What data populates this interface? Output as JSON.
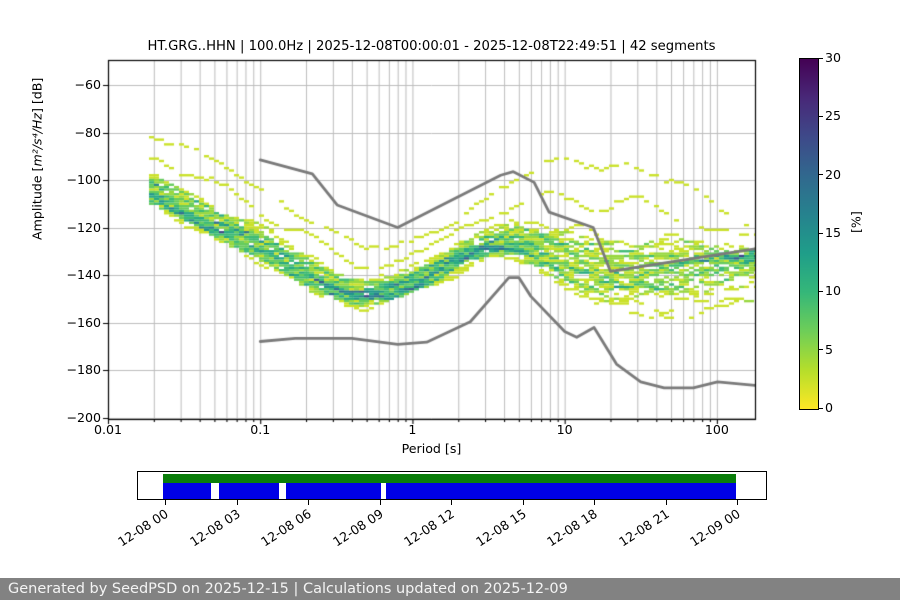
{
  "header": {
    "title": "HT.GRG..HHN | 100.0Hz | 2025-12-08T00:00:01 - 2025-12-08T22:49:51 | 42 segments"
  },
  "chart_data": {
    "type": "heatmap",
    "title": "HT.GRG..HHN | 100.0Hz | 2025-12-08T00:00:01 - 2025-12-08T22:49:51 | 42 segments",
    "xlabel": "Period [s]",
    "ylabel_prefix": "Amplitude [",
    "ylabel_math": "m²/s⁴/Hz",
    "ylabel_suffix": "] [dB]",
    "xscale": "log",
    "xlim": [
      0.01,
      178
    ],
    "ylim": [
      -200,
      -50
    ],
    "grid": true,
    "xtick_values": [
      0.01,
      0.1,
      1,
      10,
      100
    ],
    "xtick_labels": [
      "0.01",
      "0.1",
      "1",
      "10",
      "100"
    ],
    "ytick_values": [
      -60,
      -80,
      -100,
      -120,
      -140,
      -160,
      -180,
      -200
    ],
    "ytick_labels": [
      "−60",
      "−80",
      "−100",
      "−120",
      "−140",
      "−160",
      "−180",
      "−200"
    ],
    "segments": 42,
    "db_bin_width": 1,
    "ppsd_envelope": {
      "mode": [
        [
          0.02,
          -107
        ],
        [
          0.03,
          -114
        ],
        [
          0.05,
          -121
        ],
        [
          0.08,
          -127
        ],
        [
          0.12,
          -133
        ],
        [
          0.2,
          -141
        ],
        [
          0.3,
          -147
        ],
        [
          0.45,
          -150.5
        ],
        [
          0.7,
          -148.5
        ],
        [
          1,
          -144.5
        ],
        [
          1.5,
          -139
        ],
        [
          2.2,
          -133
        ],
        [
          3.2,
          -129
        ],
        [
          4.5,
          -128.5
        ],
        [
          6,
          -131
        ],
        [
          9,
          -136
        ],
        [
          15,
          -141
        ],
        [
          25,
          -143
        ],
        [
          50,
          -141
        ],
        [
          100,
          -137
        ],
        [
          178,
          -134
        ]
      ],
      "upper": [
        [
          0.02,
          -78
        ],
        [
          0.03,
          -84
        ],
        [
          0.05,
          -90
        ],
        [
          0.08,
          -97
        ],
        [
          0.12,
          -104
        ],
        [
          0.2,
          -112
        ],
        [
          0.3,
          -120
        ],
        [
          0.45,
          -127
        ],
        [
          0.7,
          -128
        ],
        [
          1,
          -124
        ],
        [
          1.5,
          -118
        ],
        [
          2.2,
          -112
        ],
        [
          3.2,
          -105
        ],
        [
          4.5,
          -99
        ],
        [
          6,
          -95
        ],
        [
          9,
          -89
        ],
        [
          15,
          -86
        ],
        [
          25,
          -87
        ],
        [
          50,
          -97
        ],
        [
          100,
          -110
        ],
        [
          178,
          -118
        ]
      ],
      "lower": [
        [
          0.02,
          -110
        ],
        [
          0.03,
          -116
        ],
        [
          0.05,
          -124
        ],
        [
          0.08,
          -131
        ],
        [
          0.12,
          -137
        ],
        [
          0.2,
          -145
        ],
        [
          0.3,
          -149
        ],
        [
          0.45,
          -153
        ],
        [
          0.7,
          -151
        ],
        [
          1,
          -148
        ],
        [
          1.5,
          -143
        ],
        [
          2.2,
          -137
        ],
        [
          3.2,
          -132
        ],
        [
          4.5,
          -132
        ],
        [
          6,
          -136
        ],
        [
          9,
          -143
        ],
        [
          15,
          -150
        ],
        [
          25,
          -155
        ],
        [
          50,
          -157
        ],
        [
          100,
          -156
        ],
        [
          178,
          -153
        ]
      ]
    },
    "noise_models": {
      "color": "#7a7a7a",
      "nhnm": [
        [
          0.1,
          -91.5
        ],
        [
          0.22,
          -97.4
        ],
        [
          0.32,
          -110.5
        ],
        [
          0.8,
          -120
        ],
        [
          3.8,
          -98
        ],
        [
          4.6,
          -96.5
        ],
        [
          6.3,
          -101
        ],
        [
          7.9,
          -113.5
        ],
        [
          15.4,
          -120
        ],
        [
          20,
          -138.5
        ],
        [
          178,
          -129
        ]
      ],
      "nlnm": [
        [
          0.1,
          -168
        ],
        [
          0.17,
          -166.7
        ],
        [
          0.4,
          -166.7
        ],
        [
          0.8,
          -169.2
        ],
        [
          1.24,
          -168.3
        ],
        [
          2.4,
          -159.7
        ],
        [
          4.3,
          -141.1
        ],
        [
          5,
          -141.1
        ],
        [
          6,
          -149
        ],
        [
          10,
          -163.8
        ],
        [
          12,
          -166.2
        ],
        [
          15.6,
          -162.1
        ],
        [
          21.9,
          -177.5
        ],
        [
          31.6,
          -185
        ],
        [
          45,
          -187.5
        ],
        [
          70,
          -187.5
        ],
        [
          101,
          -185
        ],
        [
          178,
          -186.5
        ]
      ]
    },
    "colorbar": {
      "label": "[%]",
      "min": 0,
      "max": 30,
      "tick_values": [
        0,
        5,
        10,
        15,
        20,
        25,
        30
      ],
      "tick_labels": [
        "0",
        "5",
        "10",
        "15",
        "20",
        "25",
        "30"
      ],
      "colors_bottom_to_top": [
        "#fde725",
        "#b5de2b",
        "#6ece58",
        "#35b779",
        "#1f9e89",
        "#26828e",
        "#31688e",
        "#3e4989",
        "#482878",
        "#440154"
      ]
    }
  },
  "timeline": {
    "coverage_color": "#0a7d0a",
    "data_color": "#0000e6",
    "coverage_segments": [
      [
        0,
        1
      ]
    ],
    "data_segments": [
      [
        0,
        0.0839
      ],
      [
        0.0979,
        0.2028
      ],
      [
        0.215,
        0.3811
      ],
      [
        0.39,
        1
      ]
    ],
    "tick_labels": [
      "12-08 00",
      "12-08 03",
      "12-08 06",
      "12-08 09",
      "12-08 12",
      "12-08 15",
      "12-08 18",
      "12-08 21",
      "12-09 00"
    ]
  },
  "footer": {
    "text": "Generated by SeedPSD on 2025-12-15 | Calculations updated on 2025-12-09",
    "bg": "#828282",
    "fg": "#f4f4f4"
  }
}
